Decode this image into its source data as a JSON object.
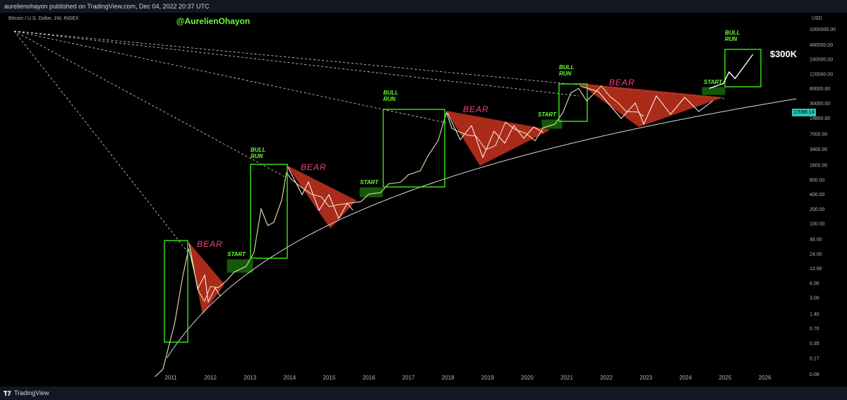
{
  "header": {
    "publish_line": "aurelienohayon published on TradingView.com, Dec 04, 2022 20:37 UTC"
  },
  "legend": {
    "symbol_line": "Bitcoin / U.S. Dollar, 1W, INDEX"
  },
  "footer": {
    "brand": "TradingView"
  },
  "colors": {
    "background": "#000000",
    "candle": "#e8e2b0",
    "green_box": "#39ff14",
    "green_label": "#66ff33",
    "bear_fill": "#c8321e",
    "bear_label": "#ff3d7f",
    "curve": "#d9d9d9",
    "price_tag": "#26c6b8"
  },
  "chart_data": {
    "type": "line",
    "title": "@AurelienOhayon",
    "price_axis_unit": "USD",
    "y_scale": "log",
    "current_price_label": "17098.14",
    "x_ticks": [
      "2011",
      "2012",
      "2013",
      "2014",
      "2015",
      "2016",
      "2017",
      "2018",
      "2019",
      "2020",
      "2021",
      "2022",
      "2023",
      "2024",
      "2025",
      "2026"
    ],
    "y_ticks": [
      "1000000.00",
      "480000.00",
      "240000.00",
      "120000.00",
      "60000.00",
      "30000.00",
      "14800.00",
      "7000.00",
      "3400.00",
      "1600.00",
      "800.00",
      "400.00",
      "200.00",
      "100.00",
      "48.00",
      "24.00",
      "12.00",
      "6.00",
      "3.00",
      "1.40",
      "0.70",
      "0.35",
      "0.17",
      "0.08"
    ],
    "annotations": {
      "bull_labels": [
        "BULL\nRUN",
        "BULL\nRUN",
        "BULL\nRUN",
        "BULL\nRUN"
      ],
      "bear_labels": [
        "BEAR",
        "BEAR",
        "BEAR",
        "BEAR"
      ],
      "start_labels": [
        "START",
        "START",
        "START",
        "START"
      ],
      "target_label": "$300K"
    },
    "price_series": [
      [
        "2010.60",
        0.07
      ],
      [
        "2010.80",
        0.1
      ],
      [
        "2010.95",
        0.3
      ],
      [
        "2011.10",
        0.9
      ],
      [
        "2011.30",
        8
      ],
      [
        "2011.45",
        30
      ],
      [
        "2011.55",
        14
      ],
      [
        "2011.70",
        4
      ],
      [
        "2011.85",
        2.5
      ],
      [
        "2012.00",
        5
      ],
      [
        "2012.20",
        4.8
      ],
      [
        "2012.40",
        6.5
      ],
      [
        "2012.60",
        10
      ],
      [
        "2012.90",
        13
      ],
      [
        "2013.10",
        25
      ],
      [
        "2013.28",
        200
      ],
      [
        "2013.45",
        90
      ],
      [
        "2013.60",
        105
      ],
      [
        "2013.80",
        300
      ],
      [
        "2013.92",
        1100
      ],
      [
        "2014.05",
        800
      ],
      [
        "2014.30",
        550
      ],
      [
        "2014.55",
        400
      ],
      [
        "2014.80",
        350
      ],
      [
        "2015.00",
        220
      ],
      [
        "2015.20",
        240
      ],
      [
        "2015.50",
        260
      ],
      [
        "2015.80",
        280
      ],
      [
        "2016.00",
        400
      ],
      [
        "2016.30",
        430
      ],
      [
        "2016.50",
        650
      ],
      [
        "2016.80",
        700
      ],
      [
        "2017.00",
        1000
      ],
      [
        "2017.30",
        1200
      ],
      [
        "2017.50",
        2500
      ],
      [
        "2017.75",
        5000
      ],
      [
        "2017.96",
        19000
      ],
      [
        "2018.10",
        9000
      ],
      [
        "2018.30",
        7500
      ],
      [
        "2018.50",
        6500
      ],
      [
        "2018.70",
        6300
      ],
      [
        "2018.96",
        3300
      ],
      [
        "2019.20",
        4000
      ],
      [
        "2019.45",
        12000
      ],
      [
        "2019.70",
        8500
      ],
      [
        "2019.95",
        7200
      ],
      [
        "2020.20",
        5000
      ],
      [
        "2020.40",
        9200
      ],
      [
        "2020.70",
        11000
      ],
      [
        "2020.90",
        19000
      ],
      [
        "2021.10",
        48000
      ],
      [
        "2021.30",
        60000
      ],
      [
        "2021.50",
        33000
      ],
      [
        "2021.70",
        48000
      ],
      [
        "2021.87",
        67000
      ],
      [
        "2022.10",
        40000
      ],
      [
        "2022.30",
        30000
      ],
      [
        "2022.50",
        20000
      ],
      [
        "2022.80",
        19500
      ],
      [
        "2022.92",
        16000
      ],
      [
        "2022.93",
        17098
      ]
    ],
    "projection": [
      [
        "2024.60",
        60000
      ],
      [
        "2024.95",
        75000
      ],
      [
        "2025.10",
        130000
      ],
      [
        "2025.25",
        95000
      ],
      [
        "2025.70",
        300000
      ]
    ]
  }
}
